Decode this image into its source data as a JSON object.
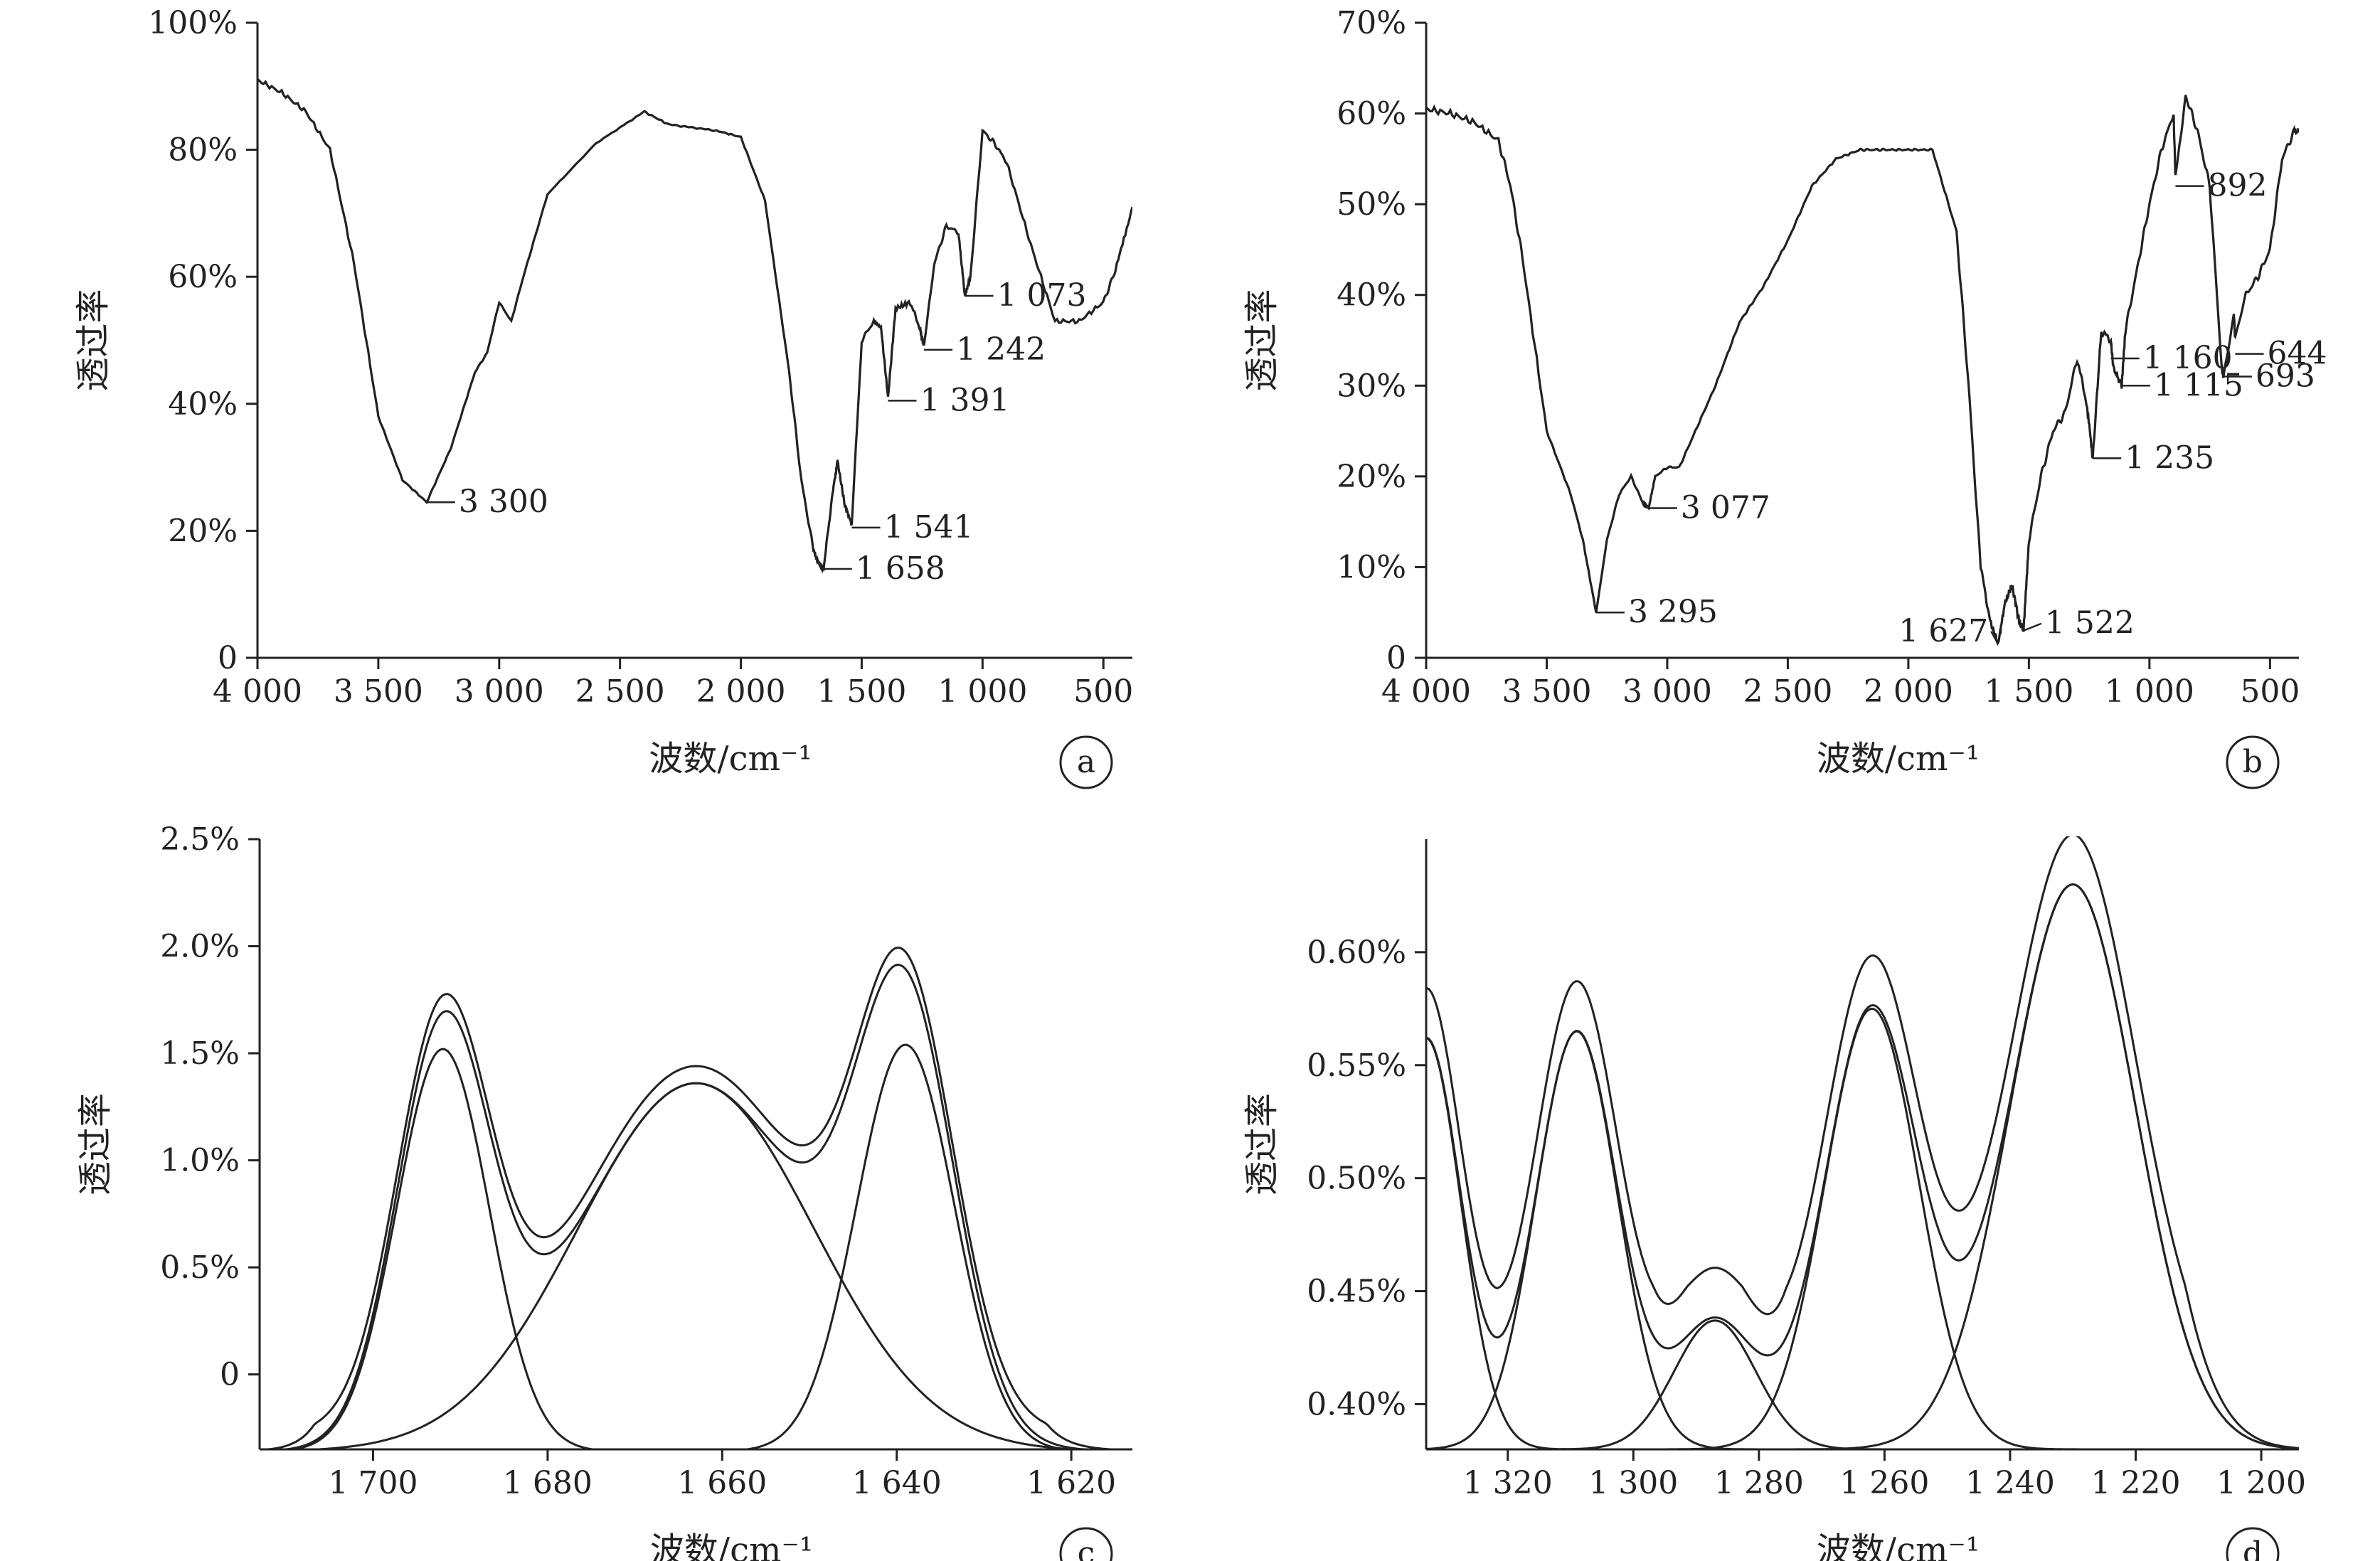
{
  "chart_data": [
    {
      "id": "a",
      "type": "line",
      "panel_label": "a",
      "xlabel": "波数/cm⁻¹",
      "ylabel": "透过率",
      "xlim": [
        4000,
        380
      ],
      "ylim": [
        0,
        100
      ],
      "xticks": [
        {
          "v": 4000,
          "t": "4 000"
        },
        {
          "v": 3500,
          "t": "3 500"
        },
        {
          "v": 3000,
          "t": "3 000"
        },
        {
          "v": 2500,
          "t": "2 500"
        },
        {
          "v": 2000,
          "t": "2 000"
        },
        {
          "v": 1500,
          "t": "1 500"
        },
        {
          "v": 1000,
          "t": "1 000"
        },
        {
          "v": 500,
          "t": "500"
        }
      ],
      "yticks": [
        {
          "v": 0,
          "t": "0"
        },
        {
          "v": 20,
          "t": "20%"
        },
        {
          "v": 40,
          "t": "40%"
        },
        {
          "v": 60,
          "t": "60%"
        },
        {
          "v": 80,
          "t": "80%"
        },
        {
          "v": 100,
          "t": "100%"
        }
      ],
      "series": [
        {
          "x": [
            4000,
            3900,
            3800,
            3700,
            3600,
            3500,
            3400,
            3300,
            3200,
            3100,
            3050,
            3000,
            2950,
            2900,
            2800,
            2600,
            2400,
            2350,
            2300,
            2100,
            2000,
            1900,
            1800,
            1750,
            1700,
            1680,
            1658,
            1620,
            1600,
            1570,
            1541,
            1500,
            1450,
            1420,
            1391,
            1360,
            1300,
            1260,
            1242,
            1200,
            1150,
            1100,
            1073,
            1050,
            1000,
            950,
            900,
            800,
            700,
            600,
            500,
            450,
            380
          ],
          "y": [
            91,
            89,
            86,
            80,
            62,
            38,
            28,
            24.5,
            33,
            45,
            48,
            56,
            53,
            60,
            73,
            81,
            86,
            85,
            84,
            83,
            82,
            72,
            45,
            28,
            17,
            15,
            14,
            26,
            31,
            24,
            21,
            50,
            53,
            52,
            41,
            55,
            56,
            52,
            49,
            62,
            68,
            67,
            57,
            60,
            83,
            81,
            78,
            65,
            53,
            53,
            56,
            61,
            71
          ]
        }
      ],
      "annotations": [
        {
          "x": 3300,
          "y": 24.5,
          "text": "3 300"
        },
        {
          "x": 1541,
          "y": 20.5,
          "text": "1 541"
        },
        {
          "x": 1658,
          "y": 14,
          "text": "1 658"
        },
        {
          "x": 1391,
          "y": 40.5,
          "text": "1 391"
        },
        {
          "x": 1242,
          "y": 48.5,
          "text": "1 242"
        },
        {
          "x": 1073,
          "y": 57,
          "text": "1 073"
        }
      ]
    },
    {
      "id": "b",
      "type": "line",
      "panel_label": "b",
      "xlabel": "波数/cm⁻¹",
      "ylabel": "透过率",
      "xlim": [
        4000,
        380
      ],
      "ylim": [
        0,
        70
      ],
      "xticks": [
        {
          "v": 4000,
          "t": "4 000"
        },
        {
          "v": 3500,
          "t": "3 500"
        },
        {
          "v": 3000,
          "t": "3 000"
        },
        {
          "v": 2500,
          "t": "2 500"
        },
        {
          "v": 2000,
          "t": "2 000"
        },
        {
          "v": 1500,
          "t": "1 500"
        },
        {
          "v": 1000,
          "t": "1 000"
        },
        {
          "v": 500,
          "t": "500"
        }
      ],
      "yticks": [
        {
          "v": 0,
          "t": "0"
        },
        {
          "v": 10,
          "t": "10%"
        },
        {
          "v": 20,
          "t": "20%"
        },
        {
          "v": 30,
          "t": "30%"
        },
        {
          "v": 40,
          "t": "40%"
        },
        {
          "v": 50,
          "t": "50%"
        },
        {
          "v": 60,
          "t": "60%"
        },
        {
          "v": 70,
          "t": "70%"
        }
      ],
      "series": [
        {
          "x": [
            4000,
            3900,
            3800,
            3700,
            3650,
            3600,
            3500,
            3400,
            3350,
            3295,
            3250,
            3200,
            3150,
            3100,
            3077,
            3050,
            3000,
            2950,
            2900,
            2800,
            2700,
            2650,
            2600,
            2500,
            2400,
            2300,
            2200,
            2150,
            2100,
            2000,
            1900,
            1800,
            1750,
            1700,
            1660,
            1627,
            1600,
            1570,
            1540,
            1522,
            1500,
            1450,
            1400,
            1350,
            1300,
            1260,
            1235,
            1200,
            1160,
            1150,
            1115,
            1100,
            1050,
            1000,
            950,
            900,
            892,
            850,
            800,
            750,
            700,
            693,
            650,
            644,
            600,
            550,
            500,
            450,
            400,
            380
          ],
          "y": [
            60.5,
            60,
            59,
            57,
            52,
            44,
            25,
            18,
            13,
            5,
            13,
            18,
            20,
            17,
            16.5,
            20,
            21,
            21,
            24,
            30,
            37,
            39,
            41,
            46,
            52,
            55,
            56,
            56,
            56,
            56,
            56,
            47,
            30,
            10,
            4,
            1.5,
            6,
            8,
            4,
            3,
            13,
            20,
            25,
            27,
            33,
            28,
            22,
            36,
            35,
            32,
            30,
            36,
            43,
            50,
            56,
            60,
            53,
            62,
            58,
            52,
            32,
            31,
            38,
            35,
            40,
            42,
            45,
            55,
            58,
            58
          ]
        }
      ],
      "annotations": [
        {
          "x": 3295,
          "y": 5,
          "text": "3 295"
        },
        {
          "x": 3077,
          "y": 16.5,
          "text": "3 077"
        },
        {
          "x": 1627,
          "y": 1.5,
          "text": "1 627"
        },
        {
          "x": 1522,
          "y": 3,
          "text": "1 522"
        },
        {
          "x": 1235,
          "y": 22,
          "text": "1 235"
        },
        {
          "x": 1160,
          "y": 33,
          "text": "1 160"
        },
        {
          "x": 1115,
          "y": 30,
          "text": "1 115"
        },
        {
          "x": 892,
          "y": 52,
          "text": "892"
        },
        {
          "x": 693,
          "y": 31,
          "text": "693"
        },
        {
          "x": 644,
          "y": 33.5,
          "text": "644"
        }
      ]
    },
    {
      "id": "c",
      "type": "line",
      "panel_label": "c",
      "xlabel": "波数/cm⁻¹",
      "ylabel": "透过率",
      "xlim": [
        1713,
        1613
      ],
      "ylim": [
        -0.35,
        2.5
      ],
      "xticks": [
        {
          "v": 1700,
          "t": "1 700"
        },
        {
          "v": 1680,
          "t": "1 680"
        },
        {
          "v": 1660,
          "t": "1 660"
        },
        {
          "v": 1640,
          "t": "1 640"
        },
        {
          "v": 1620,
          "t": "1 620"
        }
      ],
      "yticks": [
        {
          "v": 0,
          "t": "0"
        },
        {
          "v": 0.5,
          "t": "0.5%"
        },
        {
          "v": 1.0,
          "t": "1.0%"
        },
        {
          "v": 1.5,
          "t": "1.5%"
        },
        {
          "v": 2.0,
          "t": "2.0%"
        },
        {
          "v": 2.5,
          "t": "2.5%"
        }
      ],
      "baseline": -0.36,
      "peaks": [
        {
          "center": 1692,
          "amplitude": 1.88,
          "sigma": 5.3
        },
        {
          "center": 1663,
          "amplitude": 1.72,
          "sigma": 13.5
        },
        {
          "center": 1639,
          "amplitude": 1.9,
          "sigma": 5.6
        }
      ],
      "envelopes": [
        {
          "name": "sum",
          "offset": 0
        },
        {
          "name": "measured",
          "offset": 0.08
        }
      ]
    },
    {
      "id": "d",
      "type": "line",
      "panel_label": "d",
      "xlabel": "波数/cm⁻¹",
      "ylabel": "透过率",
      "xlim": [
        1333,
        1194
      ],
      "ylim": [
        0.38,
        0.65
      ],
      "xticks": [
        {
          "v": 1320,
          "t": "1 320"
        },
        {
          "v": 1300,
          "t": "1 300"
        },
        {
          "v": 1280,
          "t": "1 280"
        },
        {
          "v": 1260,
          "t": "1 260"
        },
        {
          "v": 1240,
          "t": "1 240"
        },
        {
          "v": 1220,
          "t": "1 220"
        },
        {
          "v": 1200,
          "t": "1 200"
        }
      ],
      "yticks": [
        {
          "v": 0.4,
          "t": "0.40%"
        },
        {
          "v": 0.45,
          "t": "0.45%"
        },
        {
          "v": 0.5,
          "t": "0.50%"
        },
        {
          "v": 0.55,
          "t": "0.55%"
        },
        {
          "v": 0.6,
          "t": "0.60%"
        }
      ],
      "baseline": 0.38,
      "peaks": [
        {
          "center": 1333,
          "amplitude": 0.182,
          "sigma": 5.5
        },
        {
          "center": 1309,
          "amplitude": 0.185,
          "sigma": 6.5
        },
        {
          "center": 1287,
          "amplitude": 0.057,
          "sigma": 6.5
        },
        {
          "center": 1262,
          "amplitude": 0.195,
          "sigma": 7.5
        },
        {
          "center": 1230,
          "amplitude": 0.25,
          "sigma": 10
        }
      ],
      "envelopes": [
        {
          "name": "sum",
          "offset": 0
        },
        {
          "name": "measured",
          "offset": 0.022
        }
      ]
    }
  ]
}
